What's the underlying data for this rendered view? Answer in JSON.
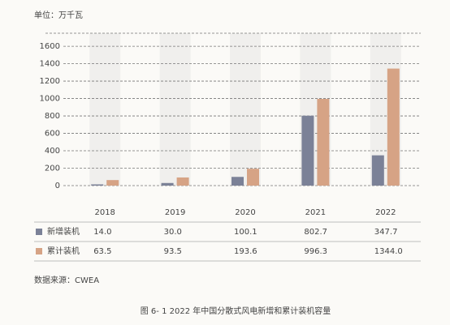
{
  "chart_data": {
    "type": "bar",
    "unit_label": "单位：万千瓦",
    "source": "数据来源：CWEA",
    "caption": "图 6- 1 2022 年中国分散式风电新增和累计装机容量",
    "categories": [
      "2018",
      "2019",
      "2020",
      "2021",
      "2022"
    ],
    "series": [
      {
        "name": "新增装机",
        "color": "#7b8197",
        "values": [
          14.0,
          30.0,
          100.1,
          802.7,
          347.7
        ],
        "value_labels": [
          "14.0",
          "30.0",
          "100.1",
          "802.7",
          "347.7"
        ]
      },
      {
        "name": "累计装机",
        "color": "#d6a385",
        "values": [
          63.5,
          93.5,
          193.6,
          996.3,
          1344.0
        ],
        "value_labels": [
          "63.5",
          "93.5",
          "193.6",
          "996.3",
          "1344.0"
        ]
      }
    ],
    "ylim": [
      0,
      1750
    ],
    "yticks": [
      0,
      200,
      400,
      600,
      800,
      1000,
      1200,
      1400,
      1600
    ],
    "grid": true
  }
}
